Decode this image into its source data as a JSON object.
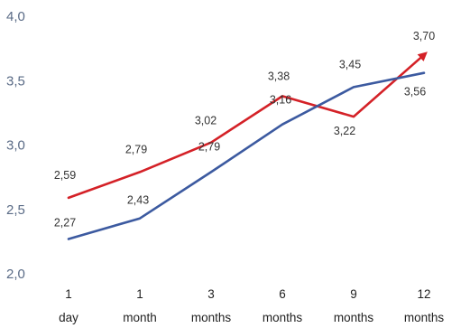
{
  "chart_data": {
    "type": "line",
    "title": "",
    "xlabel": "",
    "ylabel": "",
    "categories": [
      [
        "1",
        "day"
      ],
      [
        "1",
        "month"
      ],
      [
        "3",
        "months"
      ],
      [
        "6",
        "months"
      ],
      [
        "9",
        "months"
      ],
      [
        "12",
        "months"
      ]
    ],
    "y_ticks": [
      "2,0",
      "2,5",
      "3,0",
      "3,5",
      "4,0"
    ],
    "y_tick_values": [
      2.0,
      2.5,
      3.0,
      3.5,
      4.0
    ],
    "ylim": [
      2.0,
      4.0
    ],
    "grid": false,
    "legend": "none",
    "series": [
      {
        "color": "#d42127",
        "values": [
          2.59,
          2.79,
          3.02,
          3.38,
          3.22,
          3.7
        ],
        "labels": [
          "2,59",
          "2,79",
          "3,02",
          "3,38",
          "3,22",
          "3,70"
        ],
        "end_arrow": true
      },
      {
        "color": "#3c5aa0",
        "values": [
          2.27,
          2.43,
          2.79,
          3.16,
          3.45,
          3.56
        ],
        "labels": [
          "2,27",
          "2,43",
          "2,79",
          "3,16",
          "3,45",
          "3,56"
        ],
        "end_arrow": false
      }
    ]
  }
}
